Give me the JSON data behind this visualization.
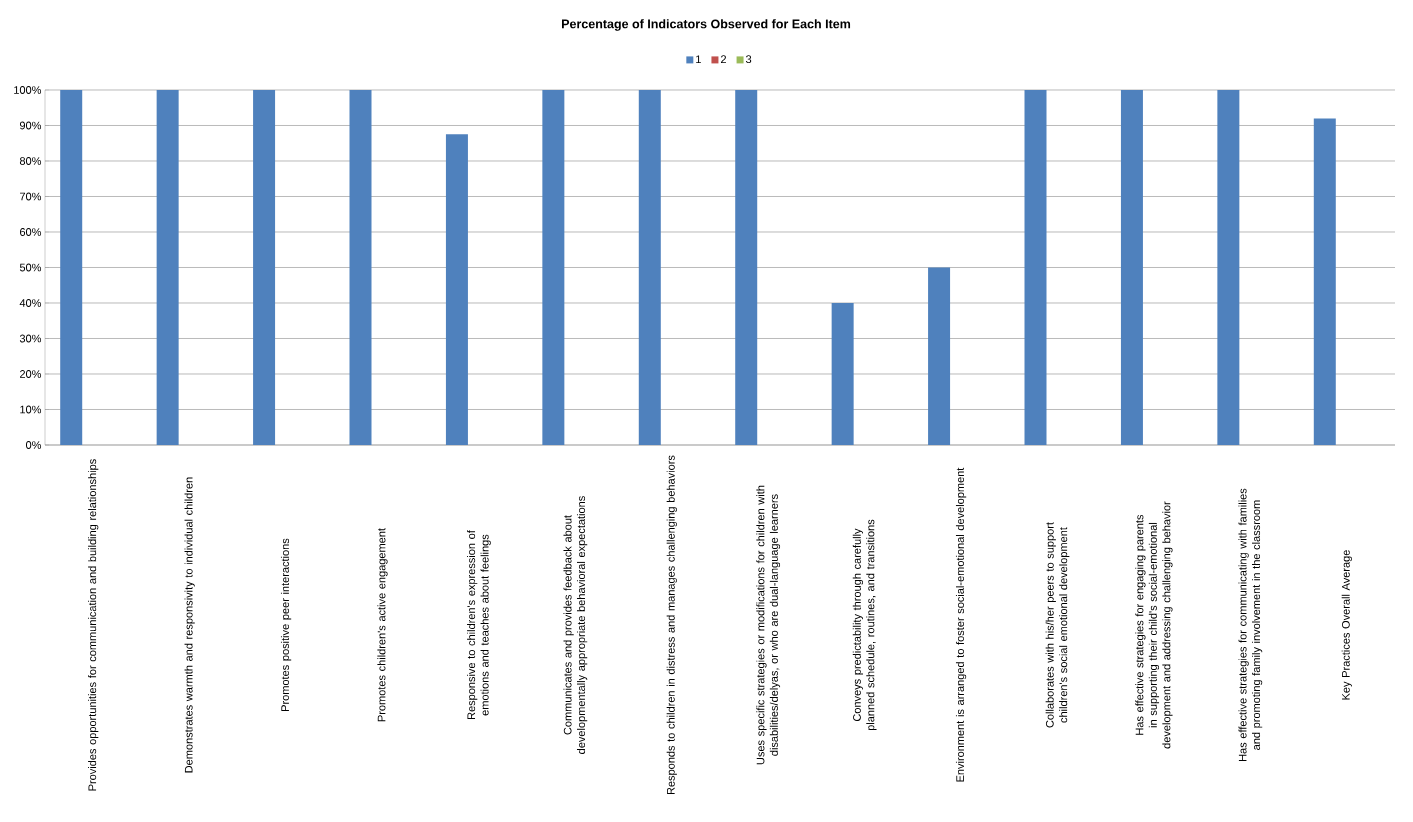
{
  "chart_data": {
    "type": "bar",
    "title": "Percentage of Indicators Observed for Each Item",
    "categories": [
      "Provides opportunities for communication and building relationships",
      "Demonstrates warmth and responsivity to individual children",
      "Promotes positive peer interactions",
      "Promotes children's active engagement",
      "Responsive to children's expression of emotions and teaches about feelings",
      "Communicates and provides feedback about developmentally appropriate behavioral expectations",
      "Responds to children in distress and manages challenging behaviors",
      "Uses specific strategies or modifications for children with disabilities/delyas, or who are dual-language learners",
      "Conveys predictability through carefully planned schedule, routines, and transitions",
      "Environment is arranged to foster social-emotional development",
      "Collaborates with his/her peers to support children's social emotional development",
      "Has effective strategies for engaging parents in supporting their child's social-emotional development and addressing challenging behavior",
      "Has effective strategies for communicating with families and promoting family involvement in the classroom",
      "Key Practices Overall Average"
    ],
    "series": [
      {
        "name": "1",
        "color": "#4f81bd",
        "values": [
          100,
          100,
          100,
          100,
          87.5,
          100,
          100,
          100,
          40,
          50,
          100,
          100,
          100,
          92
        ]
      },
      {
        "name": "2",
        "color": "#c0504d",
        "values": [
          0,
          0,
          0,
          0,
          0,
          0,
          0,
          0,
          0,
          0,
          0,
          0,
          0,
          0
        ]
      },
      {
        "name": "3",
        "color": "#9bbb59",
        "values": [
          0,
          0,
          0,
          0,
          0,
          0,
          0,
          0,
          0,
          0,
          0,
          0,
          0,
          0
        ]
      }
    ],
    "ylim": [
      0,
      100
    ],
    "yticks": [
      {
        "value": 0,
        "label": "0%"
      },
      {
        "value": 10,
        "label": "10%"
      },
      {
        "value": 20,
        "label": "20%"
      },
      {
        "value": 30,
        "label": "30%"
      },
      {
        "value": 40,
        "label": "40%"
      },
      {
        "value": 50,
        "label": "50%"
      },
      {
        "value": 60,
        "label": "60%"
      },
      {
        "value": 70,
        "label": "70%"
      },
      {
        "value": 80,
        "label": "80%"
      },
      {
        "value": 90,
        "label": "90%"
      },
      {
        "value": 100,
        "label": "100%"
      }
    ],
    "grid": "y",
    "legend": "top"
  }
}
